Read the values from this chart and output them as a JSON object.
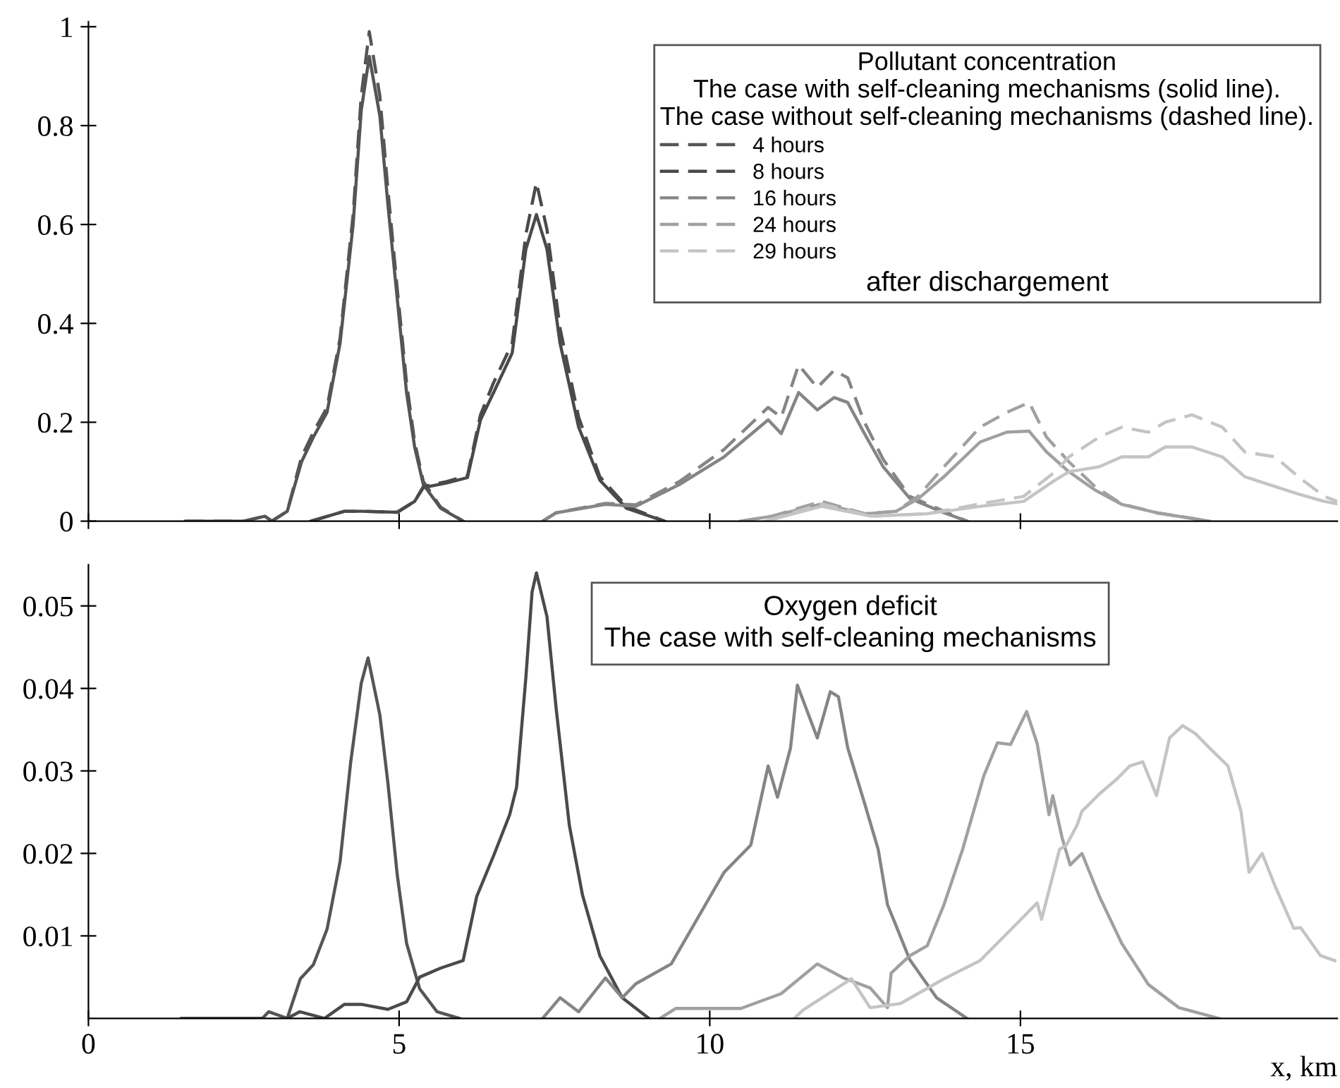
{
  "chart_data": [
    {
      "type": "line",
      "legend_title": "Pollutant concentration\nThe case with self-cleaning mechanisms (solid line).\nThe case without self-cleaning mechanisms (dashed line).",
      "annotations": [
        "after dischargement"
      ],
      "xlim": [
        0,
        20.1
      ],
      "xticks": [
        0,
        5,
        10,
        15
      ],
      "ylim": [
        0,
        1.01
      ],
      "yticks": [
        0,
        0.2,
        0.4,
        0.6,
        0.8,
        1
      ],
      "tick_labels": "y",
      "grid": false,
      "legend": "top right",
      "marker": "none",
      "series": [
        {
          "color": "#555555",
          "line_style": "solid",
          "x": [
            1.56,
            2.5,
            2.84,
            2.95,
            3.2,
            3.43,
            3.62,
            3.84,
            4.05,
            4.26,
            4.39,
            4.52,
            4.69,
            4.82,
            4.97,
            5.12,
            5.25,
            5.39,
            5.67,
            6.03
          ],
          "values": [
            0,
            0,
            0.01,
            0,
            0.02,
            0.12,
            0.17,
            0.22,
            0.36,
            0.6,
            0.83,
            0.94,
            0.82,
            0.64,
            0.45,
            0.26,
            0.15,
            0.074,
            0.026,
            0
          ]
        },
        {
          "name": "4 hours",
          "color": "#555555",
          "line_style": "dashed",
          "x": [
            1.56,
            2.5,
            2.84,
            2.95,
            3.2,
            3.43,
            3.62,
            3.84,
            4.05,
            4.26,
            4.39,
            4.52,
            4.69,
            4.82,
            4.97,
            5.12,
            5.25,
            5.39,
            5.67,
            6.03
          ],
          "values": [
            0,
            0,
            0.01,
            0,
            0.02,
            0.13,
            0.18,
            0.23,
            0.37,
            0.62,
            0.86,
            0.99,
            0.86,
            0.67,
            0.47,
            0.28,
            0.16,
            0.08,
            0.028,
            0
          ]
        },
        {
          "color": "#4a4a4a",
          "line_style": "solid",
          "x": [
            3.58,
            4.12,
            4.39,
            4.97,
            5.25,
            5.39,
            5.76,
            6.1,
            6.31,
            6.52,
            6.82,
            7.04,
            7.21,
            7.38,
            7.59,
            7.89,
            8.23,
            8.66,
            9.27
          ],
          "values": [
            0,
            0.02,
            0.02,
            0.018,
            0.04,
            0.068,
            0.077,
            0.088,
            0.205,
            0.26,
            0.34,
            0.55,
            0.62,
            0.55,
            0.36,
            0.19,
            0.083,
            0.026,
            0
          ]
        },
        {
          "name": "8 hours",
          "color": "#4a4a4a",
          "line_style": "dashed",
          "x": [
            3.58,
            4.12,
            4.39,
            4.97,
            5.25,
            5.39,
            5.76,
            6.1,
            6.31,
            6.52,
            6.82,
            7.04,
            7.21,
            7.38,
            7.59,
            7.89,
            8.23,
            8.66,
            9.27
          ],
          "values": [
            0,
            0.02,
            0.02,
            0.018,
            0.04,
            0.07,
            0.08,
            0.092,
            0.215,
            0.28,
            0.36,
            0.58,
            0.685,
            0.59,
            0.39,
            0.21,
            0.09,
            0.03,
            0
          ]
        },
        {
          "color": "#858585",
          "line_style": "solid",
          "x": [
            7.31,
            7.53,
            8.32,
            8.81,
            9.51,
            10.23,
            10.94,
            11.15,
            11.43,
            11.73,
            12.0,
            12.22,
            12.49,
            12.79,
            13.22,
            13.77,
            14.14
          ],
          "values": [
            0,
            0.017,
            0.034,
            0.03,
            0.074,
            0.13,
            0.205,
            0.177,
            0.26,
            0.225,
            0.25,
            0.24,
            0.177,
            0.11,
            0.046,
            0.017,
            0
          ]
        },
        {
          "name": "16 hours",
          "color": "#858585",
          "line_style": "dashed",
          "x": [
            7.31,
            7.53,
            8.32,
            8.81,
            9.51,
            10.23,
            10.94,
            11.15,
            11.43,
            11.73,
            12.0,
            12.22,
            12.49,
            12.79,
            13.22,
            13.77,
            14.14
          ],
          "values": [
            0,
            0.017,
            0.036,
            0.033,
            0.08,
            0.145,
            0.23,
            0.21,
            0.316,
            0.27,
            0.305,
            0.29,
            0.2,
            0.125,
            0.05,
            0.02,
            0
          ]
        },
        {
          "color": "#a0a0a0",
          "line_style": "solid",
          "x": [
            10.5,
            11.0,
            11.8,
            12.5,
            13.0,
            13.35,
            13.77,
            14.35,
            14.78,
            15.14,
            15.42,
            15.78,
            16.2,
            16.63,
            17.19,
            18.04
          ],
          "values": [
            0,
            0.01,
            0.035,
            0.015,
            0.02,
            0.045,
            0.09,
            0.16,
            0.18,
            0.182,
            0.14,
            0.1,
            0.063,
            0.034,
            0.017,
            0
          ]
        },
        {
          "name": "24 hours",
          "color": "#a0a0a0",
          "line_style": "dashed",
          "x": [
            10.5,
            11.0,
            11.8,
            12.5,
            13.0,
            13.35,
            13.77,
            14.35,
            14.78,
            15.14,
            15.42,
            15.78,
            16.2,
            16.63,
            17.19,
            18.04
          ],
          "values": [
            0,
            0.01,
            0.04,
            0.015,
            0.02,
            0.05,
            0.11,
            0.19,
            0.22,
            0.24,
            0.17,
            0.12,
            0.07,
            0.035,
            0.017,
            0
          ]
        },
        {
          "color": "#c4c4c4",
          "line_style": "solid",
          "x": [
            10.9,
            11.8,
            12.6,
            13.5,
            14.35,
            15.05,
            15.56,
            15.78,
            16.27,
            16.63,
            17.06,
            17.33,
            17.76,
            18.25,
            18.61,
            19.1,
            19.47,
            19.89,
            20.1
          ],
          "values": [
            0,
            0.03,
            0.01,
            0.015,
            0.03,
            0.04,
            0.083,
            0.1,
            0.11,
            0.13,
            0.13,
            0.15,
            0.15,
            0.13,
            0.09,
            0.07,
            0.055,
            0.04,
            0.035
          ]
        },
        {
          "name": "29 hours",
          "color": "#c4c4c4",
          "line_style": "dashed",
          "x": [
            10.9,
            11.8,
            12.6,
            13.5,
            14.35,
            15.05,
            15.56,
            15.78,
            16.27,
            16.63,
            17.06,
            17.33,
            17.76,
            18.25,
            18.61,
            19.1,
            19.47,
            19.89,
            20.1
          ],
          "values": [
            0,
            0.035,
            0.01,
            0.015,
            0.035,
            0.05,
            0.1,
            0.13,
            0.17,
            0.19,
            0.18,
            0.2,
            0.215,
            0.19,
            0.14,
            0.13,
            0.09,
            0.05,
            0.04
          ]
        }
      ]
    },
    {
      "type": "line",
      "title": "Oxygen deficit\nThe case with self-cleaning mechanisms",
      "xlabel": "x, km",
      "xlim": [
        0,
        20.1
      ],
      "xticks": [
        0,
        5,
        10,
        15
      ],
      "ylim": [
        0,
        0.055
      ],
      "yticks": [
        0.01,
        0.02,
        0.03,
        0.04,
        0.05
      ],
      "grid": false,
      "marker": "none",
      "line_style": "solid",
      "series": [
        {
          "color": "#555555",
          "x": [
            1.5,
            2.8,
            2.9,
            3.2,
            3.41,
            3.62,
            3.84,
            4.05,
            4.22,
            4.39,
            4.5,
            4.69,
            4.82,
            4.97,
            5.12,
            5.33,
            5.61,
            5.97
          ],
          "values": [
            0,
            0,
            0.0008,
            0,
            0.0048,
            0.0065,
            0.0108,
            0.019,
            0.031,
            0.0406,
            0.0437,
            0.0368,
            0.0285,
            0.0174,
            0.0091,
            0.0036,
            0.0008,
            0
          ]
        },
        {
          "color": "#4a4a4a",
          "x": [
            3.2,
            3.4,
            3.8,
            4.12,
            4.39,
            4.82,
            5.12,
            5.33,
            5.67,
            6.03,
            6.25,
            6.52,
            6.78,
            6.89,
            7.04,
            7.14,
            7.21,
            7.38,
            7.53,
            7.74,
            7.95,
            8.23,
            8.59,
            9.02
          ],
          "values": [
            0,
            0.0008,
            0,
            0.0017,
            0.0017,
            0.0011,
            0.002,
            0.005,
            0.0061,
            0.007,
            0.0148,
            0.0197,
            0.0247,
            0.028,
            0.0413,
            0.0517,
            0.054,
            0.0487,
            0.0374,
            0.0234,
            0.015,
            0.0076,
            0.0025,
            0
          ]
        },
        {
          "color": "#858585",
          "x": [
            7.31,
            7.59,
            7.89,
            8.32,
            8.59,
            8.81,
            9.38,
            10.23,
            10.66,
            10.94,
            11.09,
            11.3,
            11.41,
            11.73,
            11.94,
            12.07,
            12.22,
            12.49,
            12.71,
            12.86,
            13.22,
            13.65,
            14.14
          ],
          "values": [
            0,
            0.0025,
            0.0008,
            0.0049,
            0.0025,
            0.0042,
            0.0066,
            0.0177,
            0.021,
            0.0306,
            0.0268,
            0.0328,
            0.0404,
            0.034,
            0.0396,
            0.039,
            0.0328,
            0.0261,
            0.0205,
            0.0138,
            0.0071,
            0.0025,
            0
          ]
        },
        {
          "color": "#a0a0a0",
          "x": [
            9.2,
            9.45,
            10.5,
            11.15,
            11.73,
            12.15,
            12.58,
            12.86,
            12.92,
            13.22,
            13.5,
            13.77,
            14.07,
            14.41,
            14.63,
            14.84,
            15.1,
            15.27,
            15.46,
            15.52,
            15.67,
            15.8,
            15.99,
            16.27,
            16.63,
            17.06,
            17.55,
            18.19
          ],
          "values": [
            0,
            0.0012,
            0.0012,
            0.003,
            0.0066,
            0.0049,
            0.0037,
            0.0013,
            0.0055,
            0.0076,
            0.0088,
            0.0138,
            0.0205,
            0.0294,
            0.0334,
            0.0332,
            0.0372,
            0.0333,
            0.0247,
            0.027,
            0.0219,
            0.0186,
            0.02,
            0.0148,
            0.0091,
            0.0041,
            0.0013,
            0
          ]
        },
        {
          "color": "#c4c4c4",
          "x": [
            11.36,
            11.5,
            12.28,
            12.58,
            13.07,
            13.77,
            14.35,
            14.93,
            15.27,
            15.34,
            15.63,
            15.74,
            15.91,
            15.99,
            16.27,
            16.55,
            16.76,
            16.97,
            17.19,
            17.4,
            17.61,
            17.82,
            18.04,
            18.34,
            18.55,
            18.68,
            18.89,
            19.1,
            19.4,
            19.51,
            19.83,
            20.06
          ],
          "values": [
            0,
            0.001,
            0.0048,
            0.0013,
            0.0018,
            0.0048,
            0.007,
            0.0114,
            0.014,
            0.012,
            0.0205,
            0.021,
            0.0234,
            0.0251,
            0.0272,
            0.029,
            0.0306,
            0.0311,
            0.027,
            0.034,
            0.0355,
            0.0345,
            0.0328,
            0.0306,
            0.0251,
            0.0177,
            0.02,
            0.016,
            0.0109,
            0.011,
            0.0076,
            0.007
          ]
        }
      ]
    }
  ]
}
